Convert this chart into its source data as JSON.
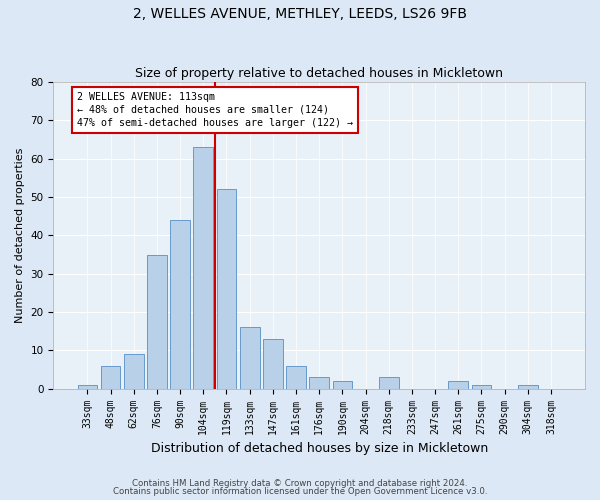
{
  "title1": "2, WELLES AVENUE, METHLEY, LEEDS, LS26 9FB",
  "title2": "Size of property relative to detached houses in Mickletown",
  "xlabel": "Distribution of detached houses by size in Mickletown",
  "ylabel": "Number of detached properties",
  "categories": [
    "33sqm",
    "48sqm",
    "62sqm",
    "76sqm",
    "90sqm",
    "104sqm",
    "119sqm",
    "133sqm",
    "147sqm",
    "161sqm",
    "176sqm",
    "190sqm",
    "204sqm",
    "218sqm",
    "233sqm",
    "247sqm",
    "261sqm",
    "275sqm",
    "290sqm",
    "304sqm",
    "318sqm"
  ],
  "values": [
    1,
    6,
    9,
    35,
    44,
    63,
    52,
    16,
    13,
    6,
    3,
    2,
    0,
    3,
    0,
    0,
    2,
    1,
    0,
    1,
    0
  ],
  "bar_color": "#b8d0e8",
  "bar_edge_color": "#6699cc",
  "vline_x": 5.5,
  "vline_color": "#cc0000",
  "annotation_text": "2 WELLES AVENUE: 113sqm\n← 48% of detached houses are smaller (124)\n47% of semi-detached houses are larger (122) →",
  "annotation_box_color": "#ffffff",
  "annotation_box_edge_color": "#cc0000",
  "ylim": [
    0,
    80
  ],
  "yticks": [
    0,
    10,
    20,
    30,
    40,
    50,
    60,
    70,
    80
  ],
  "footer1": "Contains HM Land Registry data © Crown copyright and database right 2024.",
  "footer2": "Contains public sector information licensed under the Open Government Licence v3.0.",
  "bg_color": "#dce8f5",
  "plot_bg_color": "#e8f0f8",
  "title_fontsize": 10,
  "subtitle_fontsize": 9,
  "tick_fontsize": 7,
  "ylabel_fontsize": 8,
  "xlabel_fontsize": 9
}
